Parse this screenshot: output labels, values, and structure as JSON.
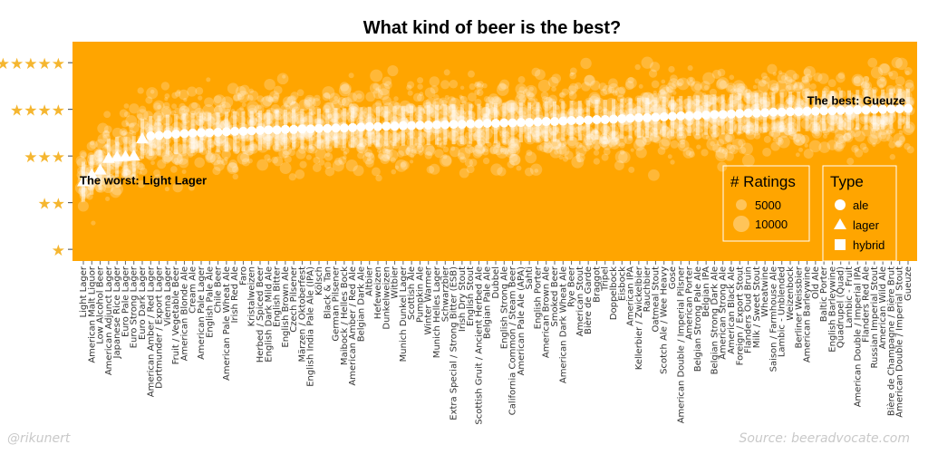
{
  "chart_data": {
    "type": "scatter",
    "title": "What kind of beer is the best?",
    "xlabel": "",
    "ylabel": "",
    "y_ticks": [
      {
        "value": 1,
        "label": "★"
      },
      {
        "value": 2,
        "label": "★★"
      },
      {
        "value": 3,
        "label": "★★★"
      },
      {
        "value": 4,
        "label": "★★★★"
      },
      {
        "value": 5,
        "label": "★★★★★"
      }
    ],
    "ylim": [
      0.75,
      5.45
    ],
    "grid": true,
    "background_color": "#FFA500",
    "point_color": "#FFFFFF",
    "star_color": "#F5B630",
    "styles": [
      "Light Lager",
      "American Malt Liquor",
      "Low Alcohol Beer",
      "American Adjunct Lager",
      "Japanese Rice Lager",
      "Euro Pale Lager",
      "Euro Strong Lager",
      "Euro Dark Lager",
      "American Amber / Red Lager",
      "Dortmunder / Export Lager",
      "Vienna Lager",
      "Fruit / Vegetable Beer",
      "American Blonde Ale",
      "Cream Ale",
      "American Pale Lager",
      "English Pale Ale",
      "Chile Beer",
      "American Pale Wheat Ale",
      "Irish Red Ale",
      "Faro",
      "Kristalweizen",
      "Herbed / Spiced Beer",
      "English Dark Mild Ale",
      "English Bitter",
      "English Brown Ale",
      "Czech Pilsener",
      "Märzen / Oktoberfest",
      "English India Pale Ale (IPA)",
      "Kölsch",
      "Black & Tan",
      "German Pilsener",
      "Maibock / Helles Bock",
      "American Amber / Red Ale",
      "Belgian Dark Ale",
      "Altbier",
      "Hefeweizen",
      "Dunkelweizen",
      "Witbier",
      "Munich Dunkel Lager",
      "Scottish Ale",
      "Pumpkin Ale",
      "Winter Warmer",
      "Munich Helles Lager",
      "Schwarzbier",
      "Extra Special / Strong Bitter (ESB)",
      "Irish Dry Stout",
      "English Stout",
      "Scottish Gruit / Ancient Herbed Ale",
      "Belgian Pale Ale",
      "Dubbel",
      "English Strong Ale",
      "California Common / Steam Beer",
      "American Pale Ale (APA)",
      "Sahti",
      "English Porter",
      "American Brown Ale",
      "Smoked Beer",
      "American Dark Wheat Ale",
      "Rye Beer",
      "American Stout",
      "Bière de Garde",
      "Braggot",
      "Tripel",
      "Doppelbock",
      "Eisbock",
      "American IPA",
      "Kellerbier / Zwickelbier",
      "Rauchbier",
      "Oatmeal Stout",
      "Scotch Ale / Wee Heavy",
      "Gose",
      "American Double / Imperial Pilsner",
      "American Porter",
      "Belgian Strong Pale Ale",
      "Belgian IPA",
      "Belgian Strong Dark Ale",
      "American Strong Ale",
      "American Black Ale",
      "Foreign / Export Stout",
      "Flanders Oud Bruin",
      "Milk / Sweet Stout",
      "Wheatwine",
      "Saison / Farmhouse Ale",
      "Lambic - Unblended",
      "Weizenbock",
      "Berliner Weissbier",
      "American Barleywine",
      "Old Ale",
      "Baltic Porter",
      "English Barleywine",
      "Quadrupel (Quad)",
      "Lambic - Fruit",
      "American Double / Imperial IPA",
      "Flanders Red Ale",
      "Russian Imperial Stout",
      "American Wild Ale",
      "Bière de Champagne / Bière Brut",
      "American Double / Imperial Stout",
      "Gueuze"
    ],
    "style_type_groups": [
      {
        "type": "lager",
        "styles": [
          "Light Lager",
          "American Malt Liquor",
          "Low Alcohol Beer",
          "American Adjunct Lager",
          "Japanese Rice Lager",
          "Euro Pale Lager",
          "Euro Strong Lager",
          "Euro Dark Lager"
        ]
      }
    ],
    "series": [
      {
        "name": "Median rating",
        "values": [
          2.45,
          2.6,
          2.7,
          2.95,
          2.98,
          2.99,
          3.0,
          3.37,
          3.43,
          3.44,
          3.46,
          3.47,
          3.48,
          3.49,
          3.5,
          3.5,
          3.51,
          3.52,
          3.53,
          3.53,
          3.54,
          3.55,
          3.56,
          3.56,
          3.57,
          3.57,
          3.58,
          3.58,
          3.59,
          3.59,
          3.6,
          3.6,
          3.61,
          3.62,
          3.63,
          3.63,
          3.64,
          3.64,
          3.65,
          3.65,
          3.66,
          3.66,
          3.67,
          3.67,
          3.68,
          3.68,
          3.69,
          3.69,
          3.7,
          3.7,
          3.71,
          3.71,
          3.72,
          3.72,
          3.73,
          3.74,
          3.74,
          3.75,
          3.76,
          3.76,
          3.77,
          3.78,
          3.78,
          3.79,
          3.8,
          3.81,
          3.82,
          3.82,
          3.83,
          3.84,
          3.85,
          3.86,
          3.86,
          3.87,
          3.88,
          3.89,
          3.89,
          3.9,
          3.91,
          3.92,
          3.92,
          3.93,
          3.94,
          3.94,
          3.95,
          3.95,
          3.96,
          3.96,
          3.97,
          3.97,
          3.98,
          3.98,
          3.99,
          3.99,
          4.0,
          4.0,
          4.01,
          4.01,
          4.02
        ]
      }
    ],
    "annotations": [
      {
        "text": "The worst: Light Lager",
        "style": "Light Lager"
      },
      {
        "text": "The best: Gueuze",
        "style": "Gueuze"
      }
    ],
    "legends": {
      "ratings": {
        "title": "# Ratings",
        "items": [
          {
            "label": "5000",
            "value": 5000
          },
          {
            "label": "10000",
            "value": 10000
          }
        ]
      },
      "type": {
        "title": "Type",
        "items": [
          {
            "label": "ale",
            "shape": "circle"
          },
          {
            "label": "lager",
            "shape": "triangle"
          },
          {
            "label": "hybrid",
            "shape": "square"
          }
        ]
      }
    },
    "legend_position": "bottom-right"
  },
  "footer": {
    "credit": "@rikunert",
    "source": "Source: beeradvocate.com"
  }
}
